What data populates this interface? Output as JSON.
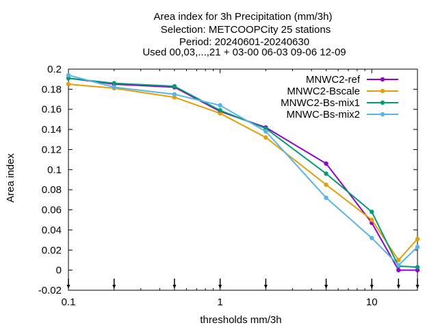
{
  "chart_data": {
    "type": "line",
    "title_lines": [
      "Area index  for 3h Precipitation (mm/3h)",
      "Selection: METCOOPCity     25 stations",
      "Period: 20240601-20240630",
      "Used 00,03,...,21 + 03-00 06-03 09-06 12-09"
    ],
    "xlabel": "thresholds mm/3h",
    "ylabel": "Area index",
    "x_scale": "log",
    "xlim": [
      0.1,
      20
    ],
    "ylim": [
      -0.02,
      0.2
    ],
    "x_ticks": [
      0.1,
      1,
      10
    ],
    "x_tick_labels": [
      "0.1",
      "1",
      "10"
    ],
    "y_ticks": [
      -0.02,
      0,
      0.02,
      0.04,
      0.06,
      0.08,
      0.1,
      0.12,
      0.14,
      0.16,
      0.18,
      0.2
    ],
    "y_tick_labels": [
      "-0.02",
      "0",
      "0.02",
      "0.04",
      "0.06",
      "0.08",
      "0.1",
      "0.12",
      "0.14",
      "0.16",
      "0.18",
      "0.2"
    ],
    "threshold_markers": [
      0.1,
      0.2,
      0.5,
      1,
      2,
      5,
      10,
      15,
      20
    ],
    "grid": false,
    "legend_position": "top-right",
    "x": [
      0.1,
      0.2,
      0.5,
      1,
      2,
      5,
      10,
      15,
      20
    ],
    "series": [
      {
        "name": "MNWC2-ref",
        "color": "#9400d3",
        "marker": "circle-filled",
        "values": [
          0.191,
          0.185,
          0.182,
          0.158,
          0.142,
          0.106,
          0.047,
          0.0,
          0.0
        ]
      },
      {
        "name": "MNWC2-Bscale",
        "color": "#e69f00",
        "marker": "circle-filled",
        "values": [
          0.185,
          0.181,
          0.172,
          0.156,
          0.132,
          0.085,
          0.05,
          0.01,
          0.031
        ]
      },
      {
        "name": "MNWC2-Bs-mix1",
        "color": "#009e73",
        "marker": "circle-filled",
        "values": [
          0.191,
          0.186,
          0.183,
          0.159,
          0.141,
          0.096,
          0.058,
          0.004,
          0.003
        ]
      },
      {
        "name": "MNWC-Bs-mix2",
        "color": "#56b4e9",
        "marker": "circle-filled",
        "values": [
          0.194,
          0.182,
          0.175,
          0.164,
          0.138,
          0.072,
          0.032,
          0.005,
          0.023
        ]
      }
    ]
  }
}
